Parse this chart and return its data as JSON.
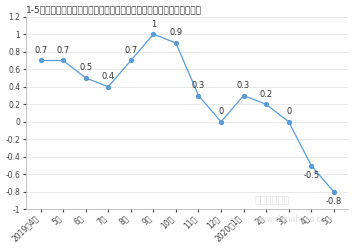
{
  "title": "1-5月泵、阀门、压缩机及类似机械制造工业生产者出厂价格指数同比涨",
  "x_labels": [
    "2019年4月",
    "5月",
    "6月",
    "7月",
    "8月",
    "9月",
    "10月",
    "11月",
    "12月",
    "2020年1月",
    "2月",
    "3月",
    "4月",
    "5月"
  ],
  "y_values": [
    0.7,
    0.7,
    0.5,
    0.4,
    0.7,
    1.0,
    0.9,
    0.3,
    0.0,
    0.3,
    0.2,
    0.0,
    -0.5,
    -0.8
  ],
  "line_color": "#5b9bd5",
  "marker_color": "#5b9bd5",
  "ylim": [
    -1.0,
    1.2
  ],
  "yticks": [
    -1.0,
    -0.8,
    -0.6,
    -0.4,
    -0.2,
    0.0,
    0.2,
    0.4,
    0.6,
    0.8,
    1.0,
    1.2
  ],
  "bg_color": "#ffffff",
  "title_fontsize": 6.5,
  "label_fontsize": 5.5,
  "annotation_fontsize": 6.0,
  "watermark_text": "中国报告大厅",
  "watermark_url": "www.chinabgao.com"
}
